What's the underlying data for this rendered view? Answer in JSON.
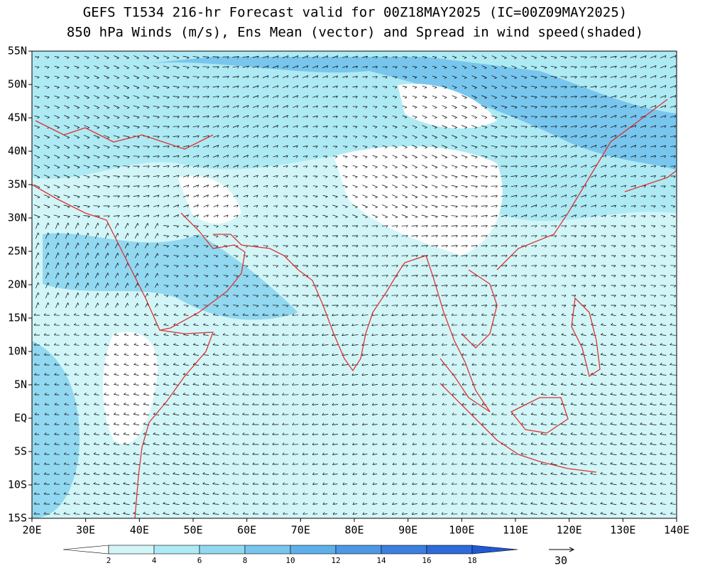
{
  "chart_data": {
    "type": "map",
    "title": "GEFS T1534 216-hr Forecast valid for 00Z18MAY2025 (IC=00Z09MAY2025)",
    "subtitle": "850 hPa Winds (m/s), Ens Mean (vector) and Spread in wind speed(shaded)",
    "xlim": [
      20,
      140
    ],
    "xticks": [
      {
        "value": 20,
        "label": "20E"
      },
      {
        "value": 30,
        "label": "30E"
      },
      {
        "value": 40,
        "label": "40E"
      },
      {
        "value": 50,
        "label": "50E"
      },
      {
        "value": 60,
        "label": "60E"
      },
      {
        "value": 70,
        "label": "70E"
      },
      {
        "value": 80,
        "label": "80E"
      },
      {
        "value": 90,
        "label": "90E"
      },
      {
        "value": 100,
        "label": "100E"
      },
      {
        "value": 110,
        "label": "110E"
      },
      {
        "value": 120,
        "label": "120E"
      },
      {
        "value": 130,
        "label": "130E"
      },
      {
        "value": 140,
        "label": "140E"
      }
    ],
    "ylim": [
      -15,
      55
    ],
    "yticks": [
      {
        "value": -15,
        "label": "15S"
      },
      {
        "value": -10,
        "label": "10S"
      },
      {
        "value": -5,
        "label": "5S"
      },
      {
        "value": 0,
        "label": "EQ"
      },
      {
        "value": 5,
        "label": "5N"
      },
      {
        "value": 10,
        "label": "10N"
      },
      {
        "value": 15,
        "label": "15N"
      },
      {
        "value": 20,
        "label": "20N"
      },
      {
        "value": 25,
        "label": "25N"
      },
      {
        "value": 30,
        "label": "30N"
      },
      {
        "value": 35,
        "label": "35N"
      },
      {
        "value": 40,
        "label": "40N"
      },
      {
        "value": 45,
        "label": "45N"
      },
      {
        "value": 50,
        "label": "50N"
      },
      {
        "value": 55,
        "label": "55N"
      }
    ],
    "colorbar": {
      "ticks": [
        2,
        4,
        6,
        8,
        10,
        12,
        14,
        16,
        18
      ],
      "colors": [
        "#ffffff",
        "#d2f6f8",
        "#aeeaf4",
        "#92d8f0",
        "#78c6ee",
        "#5eb0ea",
        "#4c98e4",
        "#3c80de",
        "#2e6ad8",
        "#2258d2"
      ]
    },
    "reference_vector": {
      "value": 30
    }
  }
}
